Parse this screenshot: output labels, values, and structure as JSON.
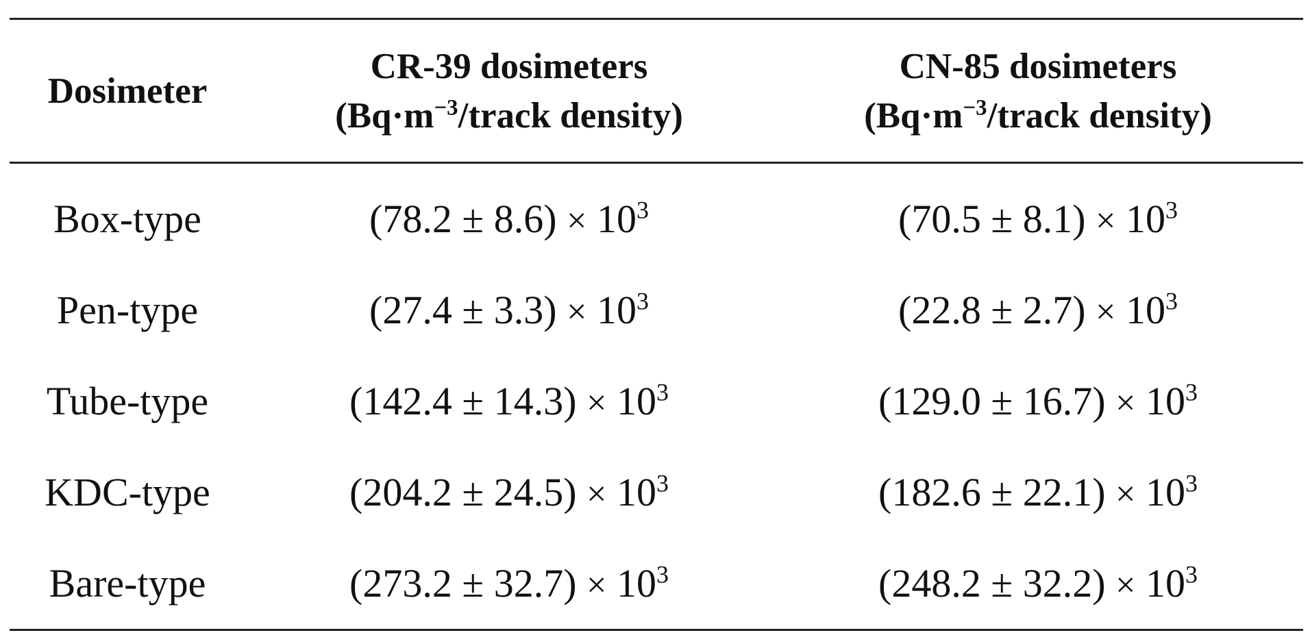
{
  "table": {
    "headers": [
      {
        "line1": "Dosimeter",
        "line2": ""
      },
      {
        "line1": "CR-39 dosimeters",
        "line2_pre": "(Bq·m",
        "line2_sup": "−3",
        "line2_post": "/track density)"
      },
      {
        "line1": "CN-85 dosimeters",
        "line2_pre": "(Bq·m",
        "line2_sup": "−3",
        "line2_post": "/track density)"
      }
    ],
    "rows": [
      {
        "dosimeter": "Box-type",
        "cr39": "(78.2 ± 8.6)",
        "cn85": "(70.5 ± 8.1)"
      },
      {
        "dosimeter": "Pen-type",
        "cr39": "(27.4 ± 3.3)",
        "cn85": "(22.8 ± 2.7)"
      },
      {
        "dosimeter": "Tube-type",
        "cr39": "(142.4 ± 14.3)",
        "cn85": "(129.0 ± 16.7)"
      },
      {
        "dosimeter": "KDC-type",
        "cr39": "(204.2 ± 24.5)",
        "cn85": "(182.6 ± 22.1)"
      },
      {
        "dosimeter": "Bare-type",
        "cr39": "(273.2 ± 32.7)",
        "cn85": "(248.2 ± 32.2)"
      }
    ],
    "multiplier_sign": "×",
    "multiplier_base": "10",
    "multiplier_exp": "3"
  }
}
